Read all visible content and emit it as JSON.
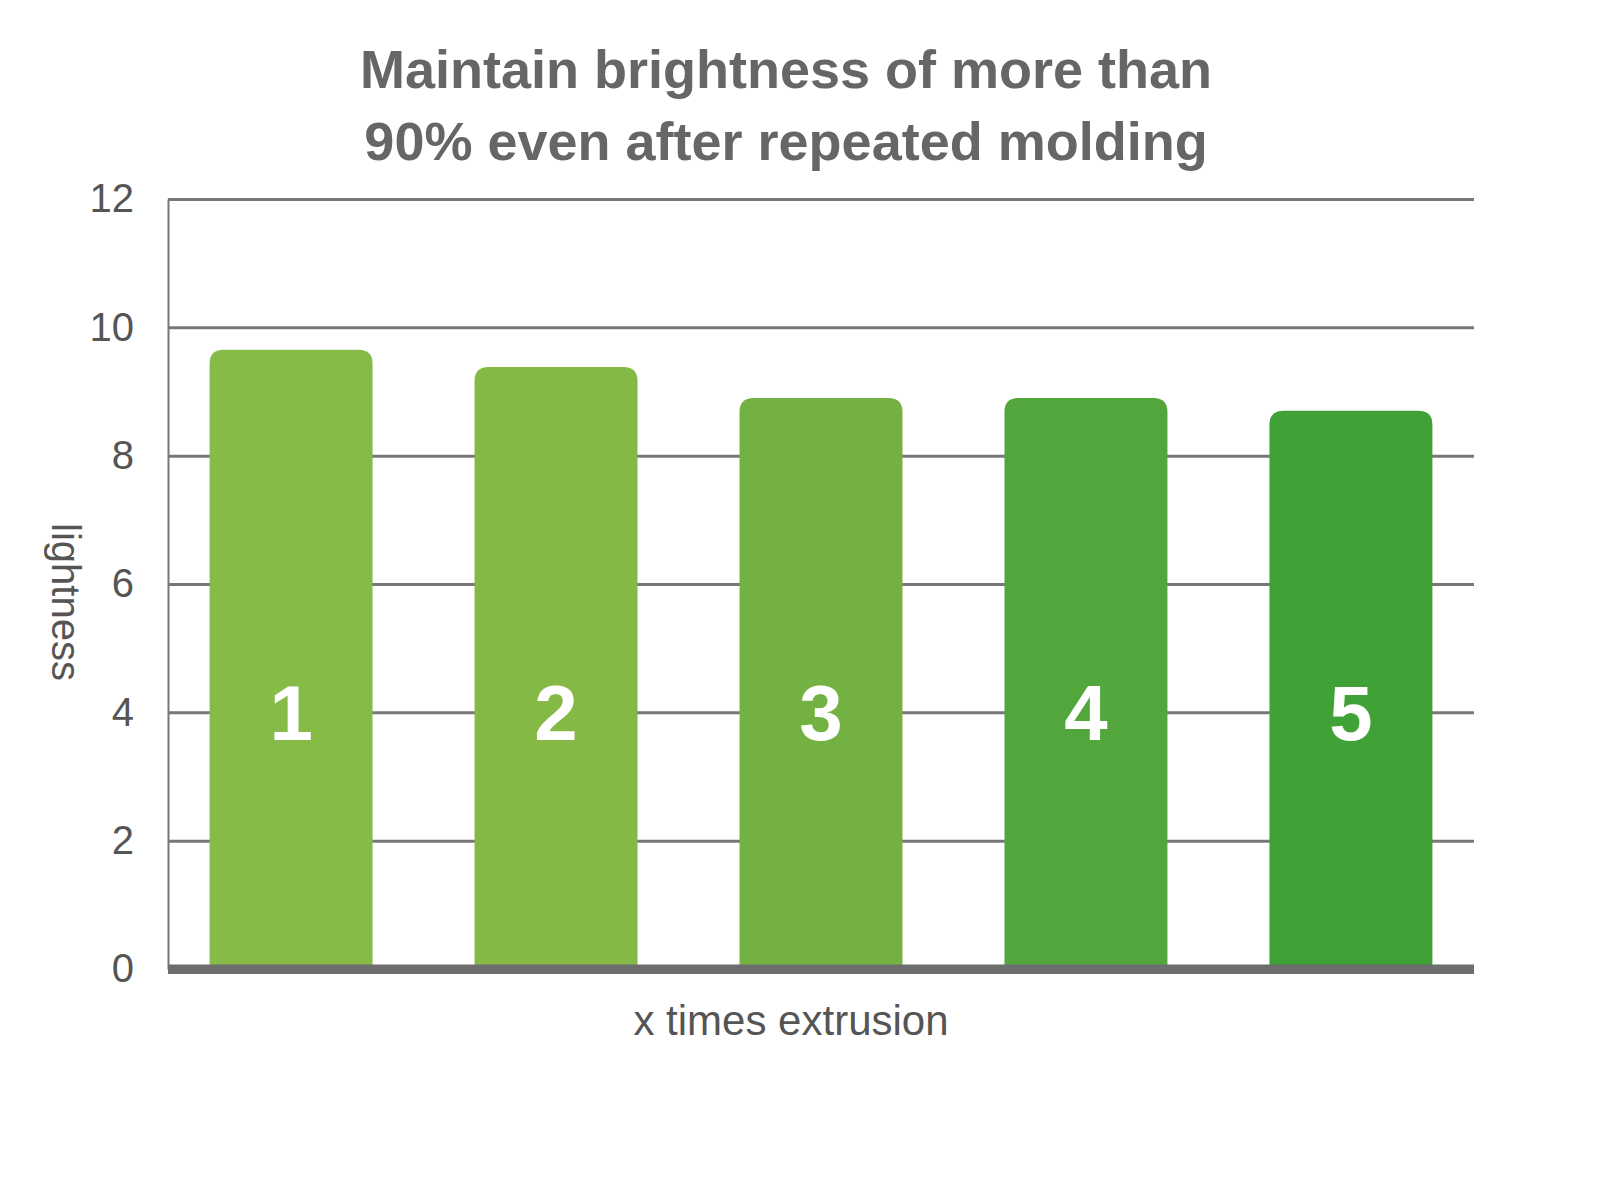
{
  "chart_data": {
    "type": "bar",
    "title": [
      "Maintain brightness of more than",
      "90% even after repeated molding"
    ],
    "x_label": "x times extrusion",
    "y_label": "lightness",
    "categories": [
      "1",
      "2",
      "3",
      "4",
      "5"
    ],
    "values": [
      9.65,
      9.38,
      8.9,
      8.9,
      8.7
    ],
    "colors": [
      "#86bb47",
      "#84b946",
      "#74b143",
      "#52a63b",
      "#3fa136"
    ],
    "ylim": [
      0,
      12
    ],
    "yticks": [
      0,
      2,
      4,
      6,
      8,
      10,
      12
    ],
    "grid": true
  }
}
